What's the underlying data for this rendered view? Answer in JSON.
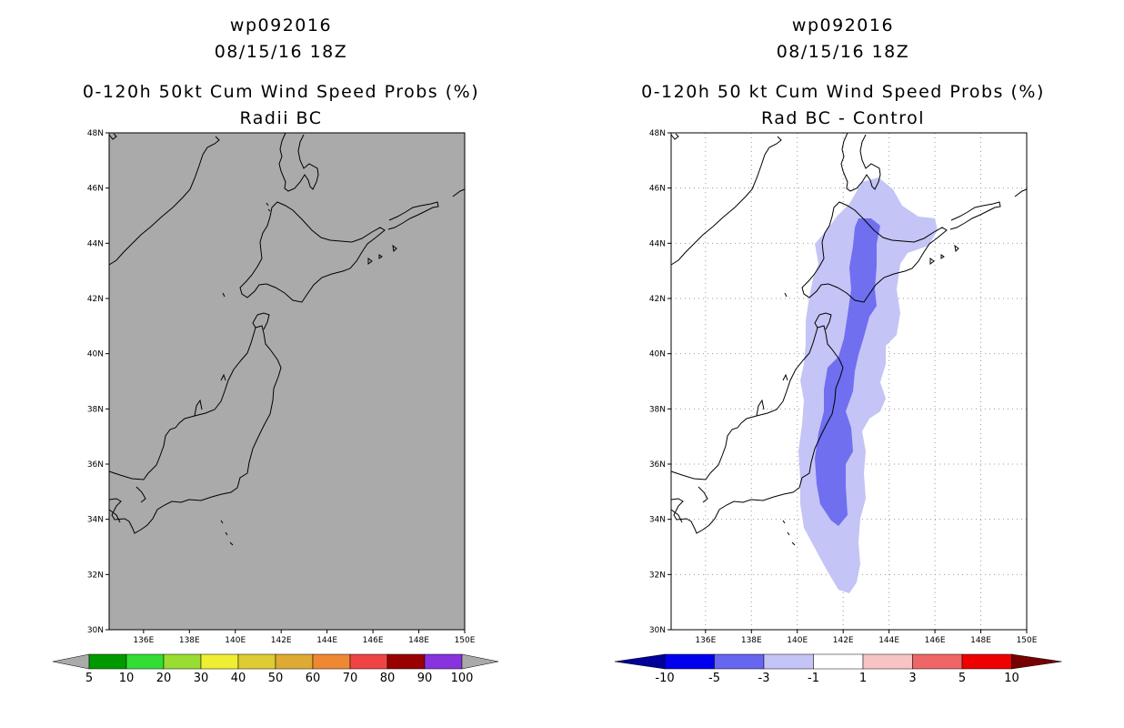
{
  "left_panel": {
    "storm_id": "wp092016",
    "datetime": "08/15/16 18Z",
    "title": "0-120h 50kt Cum Wind Speed Probs (%)",
    "subtitle": "Radii BC",
    "colorbar": {
      "labels": [
        "5",
        "10",
        "20",
        "30",
        "40",
        "50",
        "60",
        "70",
        "80",
        "90",
        "100"
      ],
      "colors": [
        "#009900",
        "#33dd33",
        "#99dd33",
        "#eeee33",
        "#ddcc33",
        "#ddaa33",
        "#ee8833",
        "#ee4444",
        "#990000",
        "#8833dd"
      ],
      "end_color": "#aaaaaa"
    },
    "background_color": "#aaaaaa"
  },
  "right_panel": {
    "storm_id": "wp092016",
    "datetime": "08/15/16 18Z",
    "title": "0-120h 50 kt Cum Wind Speed Probs (%)",
    "subtitle": "Rad BC - Control",
    "colorbar": {
      "labels": [
        "-10",
        "-5",
        "-3",
        "-1",
        "1",
        "3",
        "5",
        "10"
      ],
      "colors": [
        "#0000ee",
        "#6666ee",
        "#c4c4f6",
        "#ffffff",
        "#f6c4c4",
        "#ee6666",
        "#ee0000"
      ],
      "end_low": "#000099",
      "end_high": "#770000"
    },
    "shading": {
      "outer_level": "-3 to -1",
      "inner_level": "-5 to -3",
      "outer_color": "#c4c4f6",
      "inner_color": "#6f6ff0"
    }
  },
  "axes": {
    "lat_labels": [
      "30N",
      "32N",
      "34N",
      "36N",
      "38N",
      "40N",
      "42N",
      "44N",
      "46N",
      "48N"
    ],
    "lon_labels": [
      "136E",
      "138E",
      "140E",
      "142E",
      "144E",
      "146E",
      "148E",
      "150E"
    ],
    "lat_range": [
      30,
      48
    ],
    "lon_range": [
      134.5,
      150
    ]
  }
}
